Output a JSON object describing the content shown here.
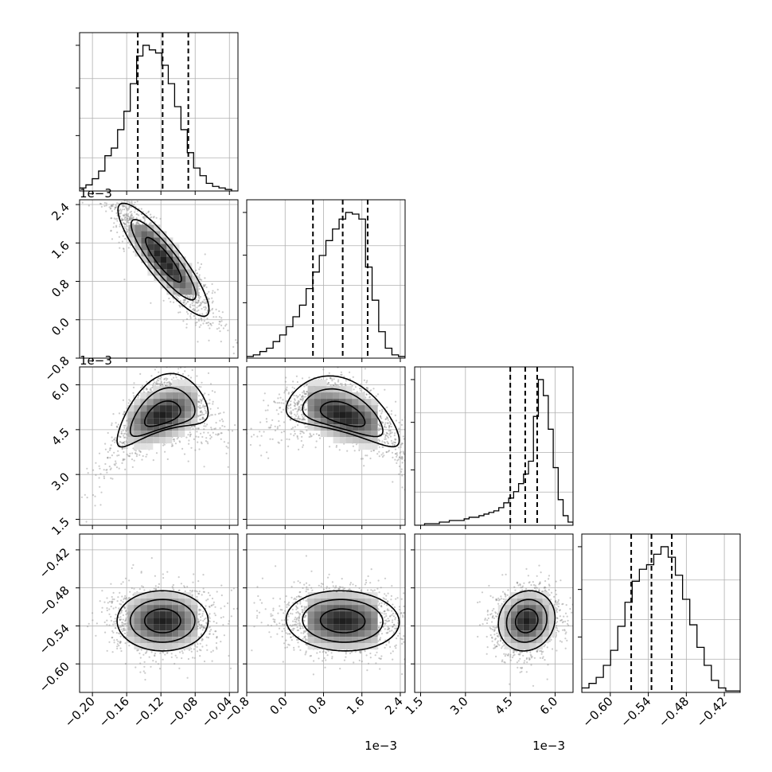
{
  "figure": {
    "type": "corner-plot",
    "colors": {
      "line": "#000000",
      "grid": "#b0b0b0",
      "scatter": "#8c8c8c",
      "background": "#ffffff"
    }
  },
  "chart_data": {
    "type": "corner",
    "n_params": 4,
    "params": [
      {
        "id": "p0",
        "range": [
          -0.215,
          -0.03
        ],
        "ticks": [
          "-0.20",
          "-0.16",
          "-0.12",
          "-0.08",
          "-0.04"
        ],
        "tick_values": [
          -0.2,
          -0.16,
          -0.12,
          -0.08,
          -0.04
        ],
        "offset_label": ""
      },
      {
        "id": "p1",
        "range": [
          -0.8,
          2.5
        ],
        "ticks": [
          "-0.8",
          "0.0",
          "0.8",
          "1.6",
          "2.4"
        ],
        "tick_values": [
          -0.8,
          0.0,
          0.8,
          1.6,
          2.4
        ],
        "offset_label": "1e−3"
      },
      {
        "id": "p2",
        "range": [
          1.3,
          6.6
        ],
        "ticks": [
          "1.5",
          "3.0",
          "4.5",
          "6.0"
        ],
        "tick_values": [
          1.5,
          3.0,
          4.5,
          6.0
        ],
        "offset_label": "1e−3"
      },
      {
        "id": "p3",
        "range": [
          -0.645,
          -0.395
        ],
        "ticks": [
          "-0.60",
          "-0.54",
          "-0.48",
          "-0.42"
        ],
        "tick_values": [
          -0.6,
          -0.54,
          -0.48,
          -0.42
        ],
        "offset_label": ""
      }
    ],
    "quantiles": [
      [
        -0.147,
        -0.118,
        -0.088
      ],
      [
        0.58,
        1.2,
        1.72
      ],
      [
        4.5,
        5.0,
        5.4
      ],
      [
        -0.567,
        -0.535,
        -0.503
      ]
    ],
    "histograms": [
      {
        "bins": 25,
        "counts": [
          2,
          4,
          8,
          13,
          23,
          28,
          40,
          52,
          70,
          88,
          95,
          92,
          90,
          82,
          70,
          55,
          40,
          25,
          15,
          10,
          5,
          3,
          2,
          1,
          0
        ]
      },
      {
        "bins": 24,
        "counts": [
          1,
          2,
          4,
          6,
          10,
          14,
          19,
          25,
          32,
          42,
          52,
          62,
          71,
          78,
          84,
          88,
          87,
          84,
          55,
          35,
          16,
          6,
          2,
          1
        ]
      },
      {
        "bins": 32,
        "counts": [
          0,
          0,
          1,
          1,
          1,
          2,
          2,
          3,
          3,
          3,
          4,
          5,
          5,
          6,
          7,
          8,
          9,
          11,
          14,
          17,
          21,
          26,
          32,
          40,
          68,
          91,
          81,
          60,
          36,
          16,
          6,
          2
        ]
      },
      {
        "bins": 22,
        "counts": [
          3,
          6,
          10,
          18,
          28,
          44,
          60,
          74,
          82,
          85,
          92,
          97,
          90,
          78,
          62,
          45,
          30,
          18,
          8,
          3,
          1,
          1
        ]
      }
    ],
    "pairs": [
      {
        "x": 0,
        "y": 1,
        "mean": [
          -0.117,
          1.25
        ],
        "sd": [
          0.028,
          0.62
        ],
        "rho": -0.88,
        "curvature": 0
      },
      {
        "x": 0,
        "y": 2,
        "mean": [
          -0.118,
          5.0
        ],
        "sd": [
          0.028,
          0.55
        ],
        "rho": 0.45,
        "curvature": 0.9
      },
      {
        "x": 1,
        "y": 2,
        "mean": [
          1.2,
          5.0
        ],
        "sd": [
          0.62,
          0.55
        ],
        "rho": -0.5,
        "curvature": 0.75
      },
      {
        "x": 0,
        "y": 3,
        "mean": [
          -0.118,
          -0.532
        ],
        "sd": [
          0.028,
          0.025
        ],
        "rho": 0.0,
        "curvature": 0
      },
      {
        "x": 1,
        "y": 3,
        "mean": [
          1.2,
          -0.532
        ],
        "sd": [
          0.62,
          0.025
        ],
        "rho": -0.05,
        "curvature": 0
      },
      {
        "x": 2,
        "y": 3,
        "mean": [
          5.05,
          -0.532
        ],
        "sd": [
          0.5,
          0.025
        ],
        "rho": 0.1,
        "curvature": 0
      }
    ]
  }
}
